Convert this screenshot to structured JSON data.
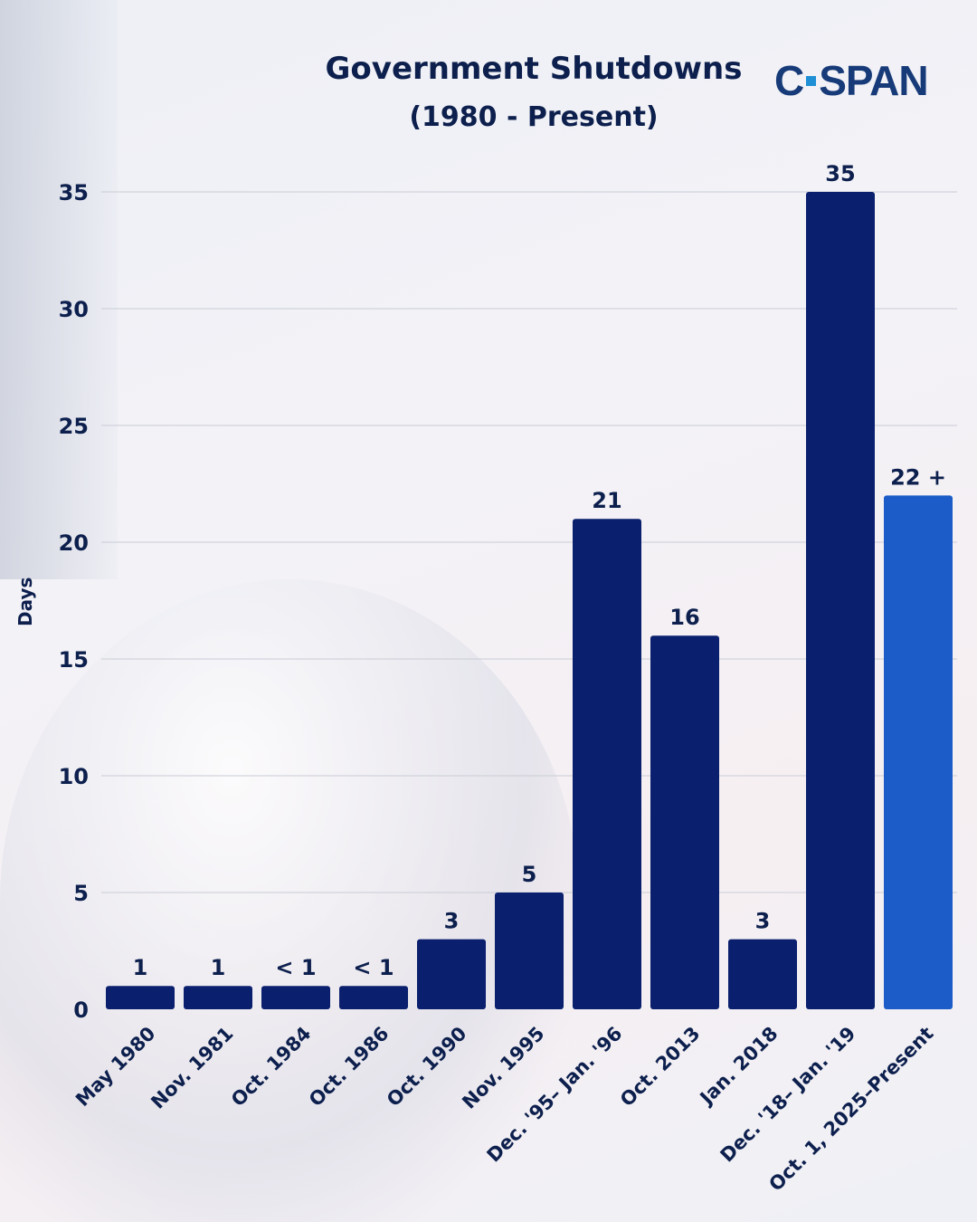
{
  "logo": {
    "text": "C-SPAN",
    "left": "C",
    "right": "SPAN"
  },
  "chart_data": {
    "type": "bar",
    "title": "Government Shutdowns",
    "subtitle": "(1980 - Present)",
    "xlabel": "",
    "ylabel": "Days",
    "ylim": [
      0,
      35
    ],
    "yticks": [
      0,
      5,
      10,
      15,
      20,
      25,
      30,
      35
    ],
    "grid": true,
    "categories": [
      "May 1980",
      "Nov. 1981",
      "Oct. 1984",
      "Oct. 1986",
      "Oct. 1990",
      "Nov. 1995",
      "Dec. '95– Jan. '96",
      "Oct. 2013",
      "Jan. 2018",
      "Dec. '18– Jan. '19",
      "Oct. 1, 2025–Present"
    ],
    "values": [
      1,
      1,
      1,
      1,
      3,
      5,
      21,
      16,
      3,
      35,
      22
    ],
    "data_labels": [
      "1",
      "1",
      "< 1",
      "< 1",
      "3",
      "5",
      "21",
      "16",
      "3",
      "35",
      "22 +"
    ],
    "colors": [
      "#0a1f6e",
      "#0a1f6e",
      "#0a1f6e",
      "#0a1f6e",
      "#0a1f6e",
      "#0a1f6e",
      "#0a1f6e",
      "#0a1f6e",
      "#0a1f6e",
      "#0a1f6e",
      "#1b5cc8"
    ]
  }
}
